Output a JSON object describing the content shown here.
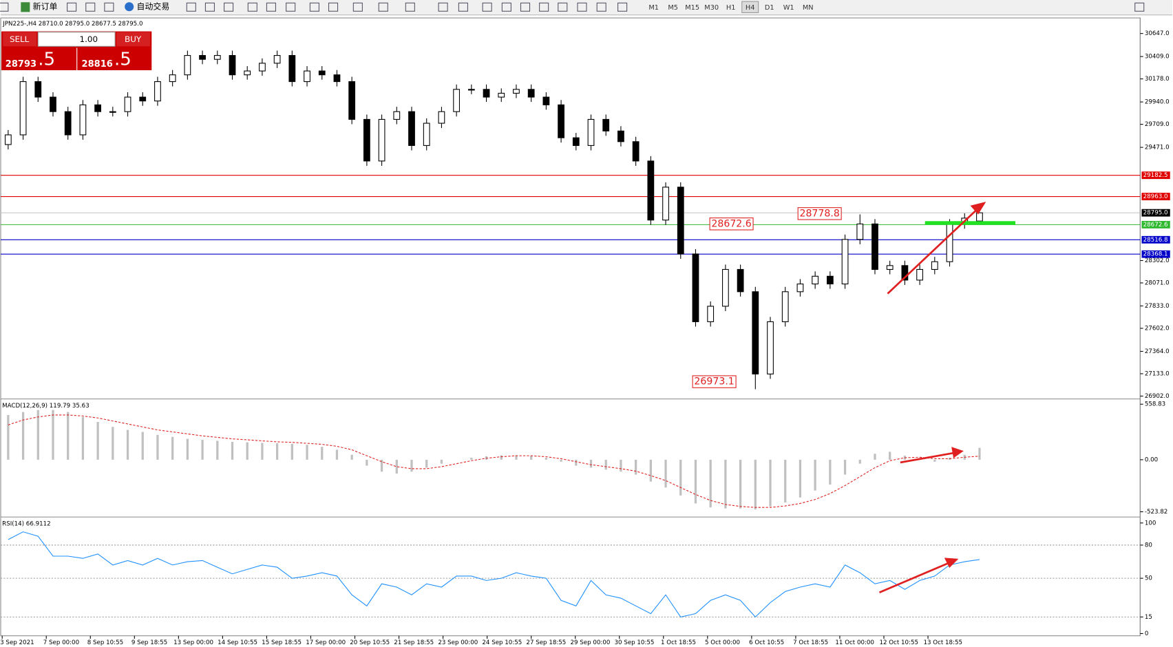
{
  "toolbar": {
    "new_order": "新订单",
    "auto_trading": "自动交易",
    "timeframes": [
      "M1",
      "M5",
      "M15",
      "M30",
      "H1",
      "H4",
      "D1",
      "W1",
      "MN"
    ]
  },
  "trade_panel": {
    "sell": "SELL",
    "buy": "BUY",
    "volume": "1.00",
    "bid_main": "28793",
    "bid_tail": ".5",
    "ask_main": "28816",
    "ask_tail": ".5"
  },
  "chart": {
    "header": "JPN225-,H4  28710.0 28795.0 28677.5 28795.0",
    "ylim": [
      26880,
      30800
    ],
    "yticks": [
      {
        "value": 30647,
        "label": "30647.0"
      },
      {
        "value": 30409,
        "label": "30409.0"
      },
      {
        "value": 30178,
        "label": "30178.0"
      },
      {
        "value": 29940,
        "label": "29940.0"
      },
      {
        "value": 29709,
        "label": "29709.0"
      },
      {
        "value": 29471,
        "label": "29471.0"
      },
      {
        "value": 28302,
        "label": "28302.0"
      },
      {
        "value": 28071,
        "label": "28071.0"
      },
      {
        "value": 27833,
        "label": "27833.0"
      },
      {
        "value": 27602,
        "label": "27602.0"
      },
      {
        "value": 27364,
        "label": "27364.0"
      },
      {
        "value": 27133,
        "label": "27133.0"
      },
      {
        "value": 26902,
        "label": "26902.0"
      }
    ],
    "levels": [
      {
        "value": 29182.5,
        "label": "29182.5",
        "color": "#e00000"
      },
      {
        "value": 28963,
        "label": "28963.0",
        "color": "#e00000"
      },
      {
        "value": 28795,
        "label": "28795.0",
        "color": "#000000"
      },
      {
        "value": 28672.6,
        "label": "28672.6",
        "color": "#2db82d"
      },
      {
        "value": 28516.8,
        "label": "28516.8",
        "color": "#0000c8"
      },
      {
        "value": 28368.1,
        "label": "28368.1",
        "color": "#0000c8"
      }
    ],
    "candles": {
      "open": [
        29500,
        29600,
        30150,
        29990,
        29840,
        29600,
        29910,
        29840,
        29840,
        29990,
        29950,
        30150,
        30220,
        30420,
        30380,
        30420,
        30220,
        30260,
        30340,
        30420,
        30150,
        30260,
        30220,
        30150,
        29760,
        29330,
        29760,
        29840,
        29490,
        29720,
        29840,
        30070,
        30070,
        29990,
        30030,
        30070,
        29990,
        29910,
        29570,
        29490,
        29760,
        29640,
        29530,
        29330,
        28720,
        29060,
        28370,
        27670,
        27830,
        28210,
        27980,
        27130,
        27670,
        27980,
        28060,
        28140,
        28060,
        28520,
        28680,
        28210,
        28250,
        28100,
        28210,
        28290,
        28680,
        28710
      ],
      "high": [
        29650,
        30200,
        30200,
        30040,
        29890,
        29960,
        29960,
        29890,
        30040,
        30040,
        30200,
        30270,
        30470,
        30470,
        30470,
        30470,
        30310,
        30390,
        30470,
        30470,
        30310,
        30310,
        30270,
        30200,
        29810,
        29810,
        29890,
        29890,
        29770,
        29890,
        30120,
        30120,
        30120,
        30080,
        30120,
        30120,
        30040,
        29960,
        29620,
        29810,
        29810,
        29690,
        29580,
        29380,
        29110,
        29110,
        28420,
        27880,
        28260,
        28260,
        28030,
        27720,
        28030,
        28110,
        28190,
        28190,
        28570,
        28778.8,
        28730,
        28300,
        28300,
        28260,
        28340,
        28730,
        28790,
        28795
      ],
      "low": [
        29450,
        29550,
        29940,
        29790,
        29550,
        29550,
        29790,
        29790,
        29790,
        29900,
        29900,
        30100,
        30170,
        30330,
        30330,
        30170,
        30170,
        30210,
        30290,
        30100,
        30100,
        30170,
        30100,
        29710,
        29280,
        29280,
        29710,
        29440,
        29440,
        29670,
        29790,
        30020,
        29940,
        29940,
        29980,
        29940,
        29860,
        29520,
        29440,
        29440,
        29590,
        29480,
        29280,
        28670,
        28670,
        28320,
        27620,
        27620,
        27780,
        27930,
        26973.1,
        27080,
        27620,
        27930,
        28010,
        28010,
        28010,
        28470,
        28160,
        28160,
        28050,
        28050,
        28160,
        28240,
        28630,
        28677.5
      ],
      "close": [
        29600,
        30150,
        29990,
        29840,
        29600,
        29910,
        29840,
        29840,
        29990,
        29950,
        30150,
        30220,
        30420,
        30380,
        30420,
        30220,
        30260,
        30340,
        30420,
        30150,
        30260,
        30220,
        30150,
        29760,
        29330,
        29760,
        29840,
        29490,
        29720,
        29840,
        30070,
        30070,
        29990,
        30030,
        30070,
        29990,
        29910,
        29570,
        29490,
        29760,
        29640,
        29530,
        29330,
        28720,
        29060,
        28370,
        27670,
        27830,
        28210,
        27980,
        27130,
        27670,
        27980,
        28060,
        28140,
        28060,
        28520,
        28680,
        28210,
        28250,
        28100,
        28210,
        28290,
        28680,
        28740,
        28795
      ]
    },
    "annotations": [
      {
        "label": "28672.6",
        "value": 28672.6
      },
      {
        "label": "28778.8",
        "value": 28778.8
      },
      {
        "label": "26973.1",
        "value": 26973.1
      }
    ],
    "time_labels": [
      "3 Sep 2021",
      "7 Sep 00:00",
      "8 Sep 10:55",
      "9 Sep 18:55",
      "13 Sep 00:00",
      "14 Sep 10:55",
      "15 Sep 18:55",
      "17 Sep 00:00",
      "20 Sep 10:55",
      "21 Sep 18:55",
      "23 Sep 00:00",
      "24 Sep 10:55",
      "27 Sep 18:55",
      "29 Sep 00:00",
      "30 Sep 10:55",
      "1 Oct 18:55",
      "5 Oct 00:00",
      "6 Oct 10:55",
      "7 Oct 18:55",
      "11 Oct 00:00",
      "12 Oct 10:55",
      "13 Oct 18:55"
    ]
  },
  "macd": {
    "label": "MACD(12,26,9) 119.79 35.63",
    "ylim": [
      -523.82,
      558.83
    ],
    "yticks": [
      {
        "value": 558.83,
        "label": "558.83"
      },
      {
        "value": 0,
        "label": "0.00"
      },
      {
        "value": -523.82,
        "label": "-523.82"
      }
    ],
    "histogram": [
      450,
      480,
      500,
      500,
      480,
      430,
      380,
      330,
      300,
      280,
      250,
      230,
      210,
      200,
      190,
      180,
      175,
      170,
      165,
      160,
      150,
      130,
      100,
      50,
      -60,
      -120,
      -140,
      -120,
      -80,
      -40,
      0,
      20,
      35,
      45,
      45,
      40,
      20,
      -20,
      -60,
      -80,
      -100,
      -120,
      -150,
      -220,
      -280,
      -360,
      -440,
      -480,
      -490,
      -490,
      -500,
      -470,
      -430,
      -380,
      -310,
      -250,
      -150,
      -40,
      60,
      80,
      40,
      10,
      -20,
      20,
      50,
      119.79
    ],
    "signal": [
      350,
      400,
      430,
      450,
      450,
      440,
      420,
      390,
      360,
      330,
      300,
      280,
      260,
      240,
      225,
      210,
      200,
      190,
      180,
      175,
      165,
      155,
      135,
      100,
      40,
      -20,
      -70,
      -90,
      -90,
      -70,
      -40,
      -10,
      15,
      30,
      40,
      40,
      30,
      10,
      -20,
      -50,
      -70,
      -90,
      -115,
      -160,
      -210,
      -280,
      -350,
      -410,
      -450,
      -470,
      -480,
      -480,
      -465,
      -440,
      -400,
      -340,
      -260,
      -170,
      -80,
      -10,
      20,
      25,
      10,
      10,
      25,
      35.63
    ]
  },
  "rsi": {
    "label": "RSI(14) 66.9112",
    "ylim": [
      0,
      100
    ],
    "yticks": [
      100,
      80,
      50,
      15,
      0
    ],
    "levels": [
      80,
      50,
      15
    ],
    "values": [
      85,
      92,
      88,
      70,
      70,
      68,
      72,
      62,
      66,
      62,
      68,
      62,
      65,
      66,
      60,
      54,
      58,
      62,
      60,
      50,
      52,
      55,
      52,
      35,
      25,
      45,
      42,
      35,
      45,
      42,
      52,
      52,
      48,
      50,
      55,
      52,
      50,
      30,
      25,
      48,
      35,
      32,
      25,
      18,
      35,
      15,
      18,
      30,
      35,
      30,
      15,
      28,
      38,
      42,
      45,
      42,
      62,
      55,
      45,
      48,
      40,
      48,
      52,
      62,
      65,
      66.9112
    ]
  }
}
